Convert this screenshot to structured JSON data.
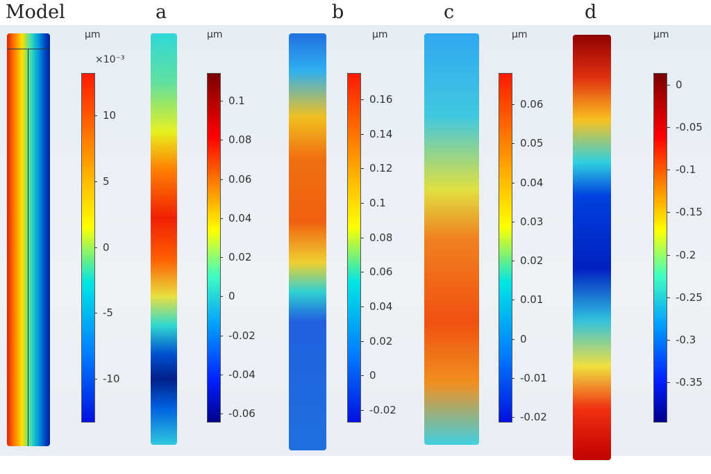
{
  "unit": "µm",
  "panels": [
    {
      "title": "Model",
      "multiplier": "×10⁻³",
      "ticks": [
        "10",
        "5",
        "0",
        "-5",
        "-10"
      ]
    },
    {
      "title": "a",
      "ticks": [
        "0.1",
        "0.08",
        "0.06",
        "0.04",
        "0.02",
        "0",
        "-0.02",
        "-0.04",
        "-0.06"
      ]
    },
    {
      "title": "b",
      "ticks": [
        "0.16",
        "0.14",
        "0.12",
        "0.1",
        "0.08",
        "0.06",
        "0.04",
        "0.02",
        "0",
        "-0.02"
      ]
    },
    {
      "title": "c",
      "ticks": [
        "0.06",
        "0.05",
        "0.04",
        "0.03",
        "0.02",
        "0.01",
        "0",
        "-0.01",
        "-0.02"
      ]
    },
    {
      "title": "d",
      "ticks": [
        "0",
        "-0.05",
        "-0.1",
        "-0.15",
        "-0.2",
        "-0.25",
        "-0.3",
        "-0.35"
      ]
    }
  ]
}
